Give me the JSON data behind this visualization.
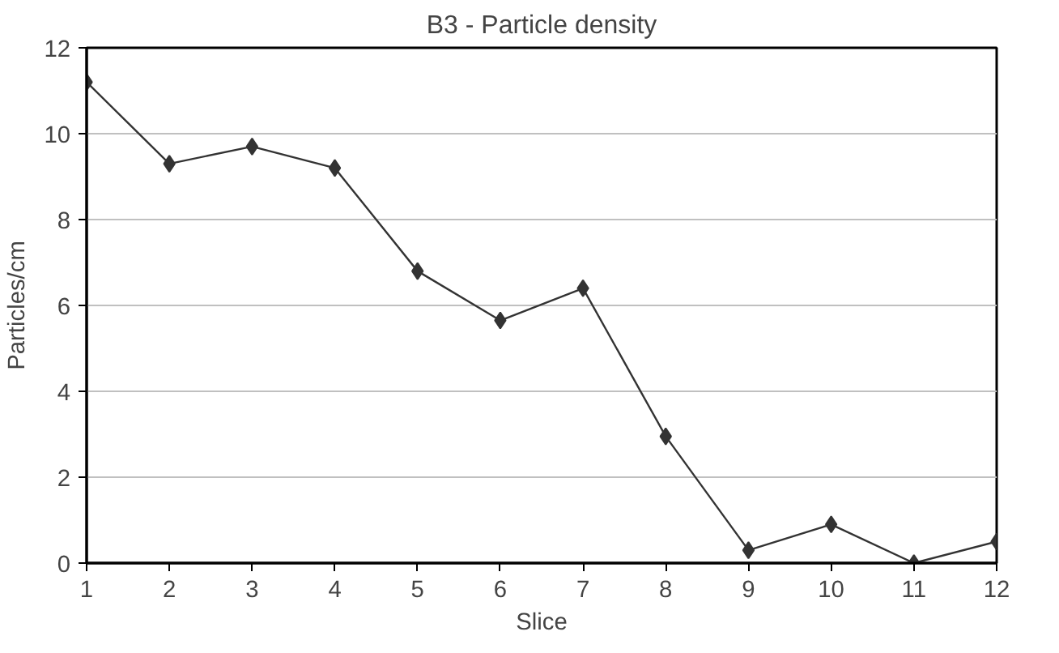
{
  "chart_data": {
    "type": "line",
    "title": "B3 - Particle density",
    "xlabel": "Slice",
    "ylabel": "Particles/cm",
    "x": [
      1,
      2,
      3,
      4,
      5,
      6,
      7,
      8,
      9,
      10,
      11,
      12
    ],
    "series": [
      {
        "color": "#333333",
        "values": [
          11.2,
          9.3,
          9.7,
          9.2,
          6.8,
          5.65,
          6.4,
          2.95,
          0.3,
          0.9,
          0.0,
          0.5
        ]
      }
    ],
    "xlim": [
      1,
      12
    ],
    "xticks": [
      1,
      2,
      3,
      4,
      5,
      6,
      7,
      8,
      9,
      10,
      11,
      12
    ],
    "ylim": [
      0,
      12
    ],
    "yticks": [
      0,
      2,
      4,
      6,
      8,
      10,
      12
    ],
    "grid": "y",
    "marker": "diamond",
    "line_style": "solid"
  }
}
